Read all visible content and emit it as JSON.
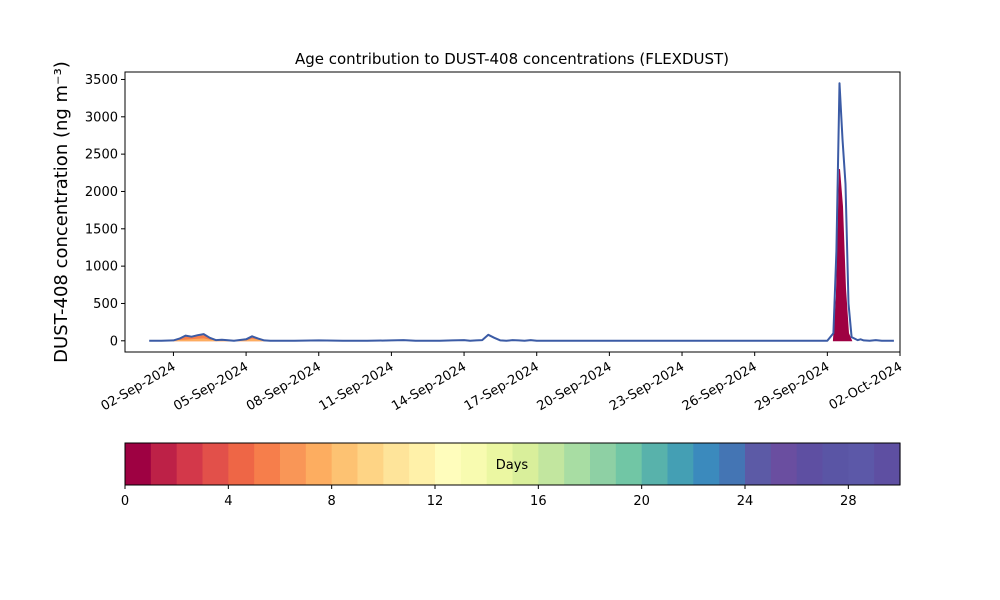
{
  "chart_data": {
    "type": "area",
    "title": "Age contribution to DUST-408 concentrations (FLEXDUST)",
    "ylabel": "DUST-408 concentration (ng m⁻³)",
    "xlabel": "",
    "ylim": [
      -150,
      3600
    ],
    "xlim": [
      "2024-08-31",
      "2024-10-02"
    ],
    "yticks": [
      0,
      500,
      1000,
      1500,
      2000,
      2500,
      3000,
      3500
    ],
    "xticks": [
      "02-Sep-2024",
      "05-Sep-2024",
      "08-Sep-2024",
      "11-Sep-2024",
      "14-Sep-2024",
      "17-Sep-2024",
      "20-Sep-2024",
      "23-Sep-2024",
      "26-Sep-2024",
      "29-Sep-2024",
      "02-Oct-2024"
    ],
    "grid": false,
    "total_series": {
      "x": [
        "2024-09-01T00:00",
        "2024-09-01T12:00",
        "2024-09-02T00:00",
        "2024-09-02T06:00",
        "2024-09-02T12:00",
        "2024-09-02T18:00",
        "2024-09-03T00:00",
        "2024-09-03T06:00",
        "2024-09-03T12:00",
        "2024-09-03T18:00",
        "2024-09-04T00:00",
        "2024-09-04T12:00",
        "2024-09-05T00:00",
        "2024-09-05T06:00",
        "2024-09-05T12:00",
        "2024-09-05T18:00",
        "2024-09-06T00:00",
        "2024-09-06T12:00",
        "2024-09-07T00:00",
        "2024-09-08T00:00",
        "2024-09-09T00:00",
        "2024-09-10T00:00",
        "2024-09-11T00:00",
        "2024-09-11T12:00",
        "2024-09-12T00:00",
        "2024-09-13T00:00",
        "2024-09-13T12:00",
        "2024-09-14T00:00",
        "2024-09-14T06:00",
        "2024-09-14T12:00",
        "2024-09-14T18:00",
        "2024-09-15T00:00",
        "2024-09-15T06:00",
        "2024-09-15T12:00",
        "2024-09-15T18:00",
        "2024-09-16T00:00",
        "2024-09-16T06:00",
        "2024-09-16T12:00",
        "2024-09-16T18:00",
        "2024-09-17T00:00",
        "2024-09-18T00:00",
        "2024-09-20T00:00",
        "2024-09-22T00:00",
        "2024-09-24T00:00",
        "2024-09-26T00:00",
        "2024-09-28T00:00",
        "2024-09-29T00:00",
        "2024-09-29T06:00",
        "2024-09-29T09:00",
        "2024-09-29T12:00",
        "2024-09-29T15:00",
        "2024-09-29T18:00",
        "2024-09-29T21:00",
        "2024-09-30T00:00",
        "2024-09-30T03:00",
        "2024-09-30T06:00",
        "2024-09-30T09:00",
        "2024-09-30T12:00",
        "2024-09-30T18:00",
        "2024-10-01T00:00",
        "2024-10-01T06:00",
        "2024-10-01T12:00",
        "2024-10-01T18:00"
      ],
      "values": [
        0,
        0,
        5,
        30,
        70,
        55,
        75,
        90,
        40,
        10,
        15,
        0,
        20,
        60,
        30,
        5,
        0,
        0,
        0,
        5,
        0,
        0,
        5,
        10,
        0,
        0,
        5,
        10,
        0,
        5,
        10,
        80,
        40,
        5,
        0,
        10,
        5,
        0,
        10,
        0,
        0,
        0,
        0,
        0,
        0,
        0,
        0,
        100,
        1200,
        3450,
        2700,
        2100,
        500,
        50,
        30,
        10,
        20,
        5,
        0,
        10,
        0,
        0,
        0
      ]
    },
    "colorbar": {
      "label": "Days",
      "min": 0,
      "max": 30,
      "ticks": [
        0,
        4,
        8,
        12,
        16,
        20,
        24,
        28
      ],
      "colors": [
        "#9e0142",
        "#bd2147",
        "#d3384a",
        "#e2504a",
        "#ee6646",
        "#f67e4b",
        "#f99657",
        "#fdad60",
        "#fdc272",
        "#fed485",
        "#fee49a",
        "#fff1a9",
        "#fffdbc",
        "#f8fbb0",
        "#ebf7a2",
        "#d9ef9b",
        "#c2e69f",
        "#a8dda3",
        "#8ed0a4",
        "#71c6a5",
        "#58b2ab",
        "#449fb4",
        "#3b8abd",
        "#4475b4",
        "#5c5aa6",
        "#6a4ea0",
        "#5e4fa2",
        "#5a55a5",
        "#5c58a8",
        "#5e4fa2"
      ]
    },
    "age_bands": [
      {
        "age_days": 1,
        "color": "#9e0142",
        "x": [
          "2024-09-29T06:00",
          "2024-09-29T09:00",
          "2024-09-29T12:00",
          "2024-09-29T15:00",
          "2024-09-29T18:00",
          "2024-09-29T21:00",
          "2024-09-30T00:00"
        ],
        "values": [
          0,
          600,
          2300,
          1800,
          700,
          100,
          0
        ]
      },
      {
        "age_days": 5,
        "color": "#f67e4b",
        "x": [
          "2024-09-02T00:00",
          "2024-09-02T06:00",
          "2024-09-02T12:00",
          "2024-09-02T18:00",
          "2024-09-03T00:00",
          "2024-09-03T06:00",
          "2024-09-03T12:00",
          "2024-09-03T18:00",
          "2024-09-04T00:00",
          "2024-09-05T00:00",
          "2024-09-05T06:00",
          "2024-09-05T12:00",
          "2024-09-05T18:00"
        ],
        "values": [
          0,
          20,
          55,
          40,
          60,
          70,
          30,
          5,
          0,
          10,
          45,
          20,
          0
        ]
      },
      {
        "age_days": 8,
        "color": "#fdad60",
        "x": [
          "2024-09-02T00:00",
          "2024-09-02T12:00",
          "2024-09-03T00:00",
          "2024-09-03T06:00",
          "2024-09-03T12:00",
          "2024-09-04T00:00",
          "2024-09-05T00:00",
          "2024-09-05T06:00",
          "2024-09-05T12:00",
          "2024-09-06T00:00"
        ],
        "values": [
          0,
          10,
          20,
          25,
          10,
          0,
          0,
          20,
          10,
          0
        ]
      }
    ]
  }
}
